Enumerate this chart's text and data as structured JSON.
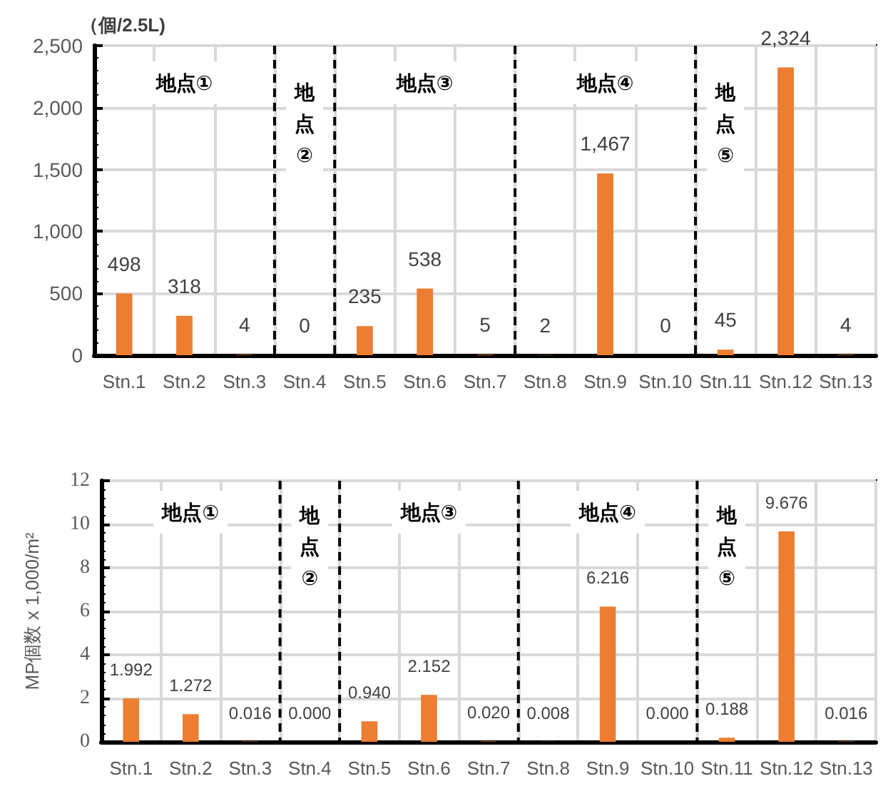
{
  "chart_data": [
    {
      "type": "bar",
      "ylabel": "（個/2.5L)",
      "categories": [
        "Stn.1",
        "Stn.2",
        "Stn.3",
        "Stn.4",
        "Stn.5",
        "Stn.6",
        "Stn.7",
        "Stn.8",
        "Stn.9",
        "Stn.10",
        "Stn.11",
        "Stn.12",
        "Stn.13"
      ],
      "series": [
        {
          "color": "#ed7d31",
          "values": [
            498,
            318,
            4,
            0,
            235,
            538,
            5,
            2,
            1467,
            0,
            45,
            2324,
            4
          ],
          "value_labels": [
            "498",
            "318",
            "4",
            "0",
            "235",
            "538",
            "5",
            "2",
            "1,467",
            "0",
            "45",
            "2,324",
            "4"
          ]
        }
      ],
      "ylim": [
        0,
        2500
      ],
      "yticks": [
        0,
        {
          "value": 500,
          "label": "500"
        },
        {
          "value": 1000,
          "label": "1,000"
        },
        {
          "value": 1500,
          "label": "1,500"
        },
        {
          "value": 2000,
          "label": "2,000"
        },
        {
          "value": 2500,
          "label": "2,500"
        }
      ],
      "grid": true,
      "annotations": [
        "地点①",
        "地点②",
        "地点③",
        "地点④",
        "地点⑤"
      ]
    },
    {
      "type": "bar",
      "ylabel": "MP個数 x 1,000/m²",
      "categories": [
        "Stn.1",
        "Stn.2",
        "Stn.3",
        "Stn.4",
        "Stn.5",
        "Stn.6",
        "Stn.7",
        "Stn.8",
        "Stn.9",
        "Stn.10",
        "Stn.11",
        "Stn.12",
        "Stn.13"
      ],
      "series": [
        {
          "color": "#ed7d31",
          "values": [
            1.992,
            1.272,
            0.016,
            0,
            0.94,
            2.152,
            0.02,
            0.008,
            6.216,
            0,
            0.188,
            9.676,
            0.016
          ],
          "value_labels": [
            "1.992",
            "1.272",
            "0.016",
            "0.000",
            "0.940",
            "2.152",
            "0.020",
            "0.008",
            "6.216",
            "0.000",
            "0.188",
            "9.676",
            "0.016"
          ]
        }
      ],
      "ylim": [
        0,
        12
      ],
      "yticks": [
        0,
        2,
        4,
        6,
        8,
        10,
        12
      ],
      "grid": true,
      "annotations": [
        "地点①",
        "地点②",
        "地点③",
        "地点④",
        "地点⑤"
      ]
    }
  ]
}
